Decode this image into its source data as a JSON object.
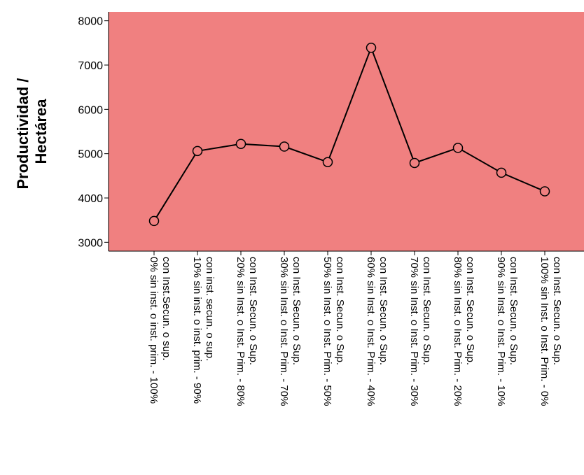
{
  "chart_data": {
    "type": "line",
    "title": "",
    "xlabel": "",
    "ylabel_lines": [
      "Productividad /",
      "Hectárea"
    ],
    "ylim": [
      2800,
      8200
    ],
    "yticks": [
      3000,
      4000,
      5000,
      6000,
      7000,
      8000
    ],
    "categories": [
      [
        "0% sin inst. o inst. prim. - 100%",
        "con Inst.Secun. o sup."
      ],
      [
        "10% sin inst. o inst. prim. - 90%",
        "con inst. secun. o sup."
      ],
      [
        "20% sin Inst. o Inst. Prim. - 80%",
        "con Inst. Secun. o Sup."
      ],
      [
        "30% sin Inst. o Inst. Prim. - 70%",
        "con Inst. Secun. o Sup."
      ],
      [
        "50% sin Inst. o Inst. Prim. - 50%",
        "con Inst. Secun. o Sup."
      ],
      [
        "60% sin Inst. o Inst. Prim. - 40%",
        "con Inst. Secun. o Sup."
      ],
      [
        "70% sin Inst. o Inst. Prim. - 30%",
        "con Inst. Secun. o Sup."
      ],
      [
        "80% sin Inst. o Inst. Prim. - 20%",
        "con Inst. Secun. o Sup."
      ],
      [
        "90% sin Inst. o Inst. Prim. - 10%",
        "con Inst. Secun. o Sup."
      ],
      [
        "100% sin Inst. o Inst. Prim. - 0%",
        "con Inst. Secun. o Sup."
      ]
    ],
    "values": [
      3480,
      5060,
      5220,
      5160,
      4810,
      7390,
      4790,
      5130,
      4570,
      4150
    ],
    "grid": false,
    "legend": "none",
    "colors": {
      "plot_background": "#F08080",
      "line": "#000000",
      "marker_fill": "#F08080"
    }
  }
}
